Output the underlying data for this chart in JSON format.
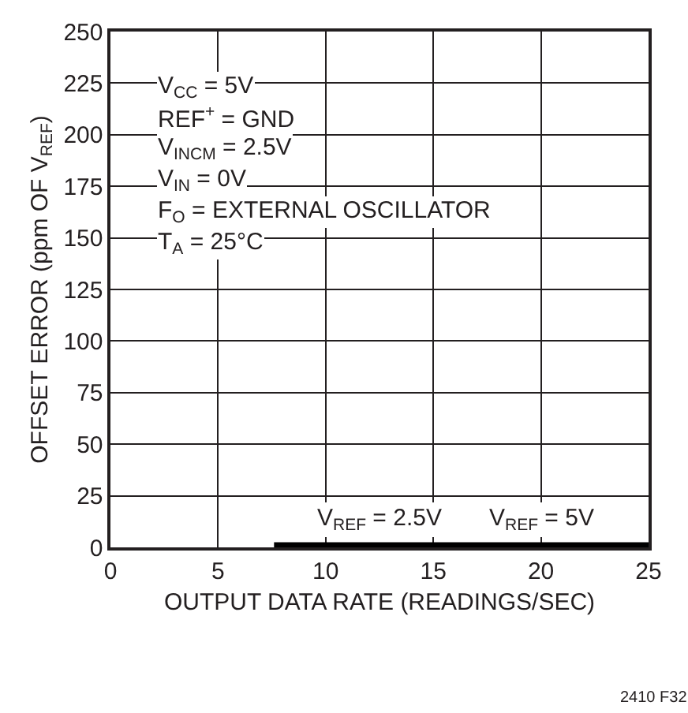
{
  "chart_data": {
    "type": "line",
    "xlabel": "OUTPUT DATA RATE (READINGS/SEC)",
    "ylabel": "OFFSET ERROR (ppm OF V$_{REF}$)",
    "series": [
      {
        "color": "#000000",
        "x": [
          7.6,
          25
        ],
        "values": [
          1,
          1
        ]
      }
    ],
    "xlim": [
      0,
      25
    ],
    "xticks": [
      0,
      5,
      10,
      15,
      20,
      25
    ],
    "ylim": [
      0,
      250
    ],
    "yticks": [
      0,
      25,
      50,
      75,
      100,
      125,
      150,
      175,
      200,
      225,
      250
    ],
    "grid": true,
    "legend": false,
    "line_style": "solid",
    "annotations": [
      "V$_{CC}$ = 5V",
      "REF$^{+}$ = GND",
      "V$_{INCM}$ = 2.5V",
      "V$_{IN}$ = 0V",
      "F$_{O}$ = EXTERNAL OSCILLATOR",
      "T$_{A}$ = 25°C",
      "2410 F32",
      {
        "text": "V$_{REF}$ = 2.5V",
        "x": 12.5,
        "y": 1
      },
      {
        "text": "V$_{REF}$ = 5V",
        "x": 20,
        "y": 1
      }
    ]
  }
}
